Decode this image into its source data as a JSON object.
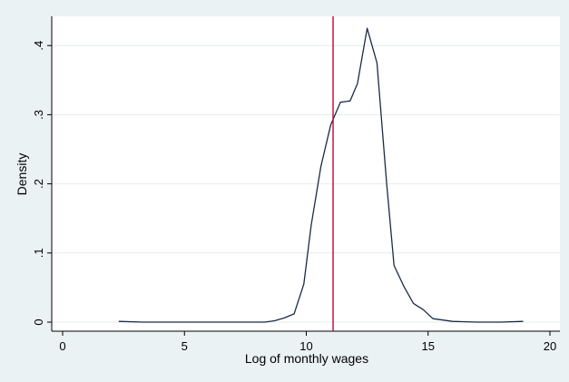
{
  "chart_data": {
    "type": "line",
    "title": "",
    "xlabel": "Log of monthly wages",
    "ylabel": "Density",
    "xlim": [
      0,
      20
    ],
    "ylim": [
      0,
      0.43
    ],
    "x_ticks": [
      0,
      5,
      10,
      15,
      20
    ],
    "x_tick_labels": [
      "0",
      "5",
      "10",
      "15",
      "20"
    ],
    "y_ticks": [
      0,
      0.1,
      0.2,
      0.3,
      0.4
    ],
    "y_tick_labels": [
      "0",
      ".1",
      ".2",
      ".3",
      ".4"
    ],
    "grid": "horizontal",
    "series": [
      {
        "x": [
          2.3,
          3.3,
          4.3,
          5.3,
          6.3,
          7.3,
          8.3,
          8.7,
          9.1,
          9.5,
          9.9,
          10.2,
          10.6,
          11.0,
          11.4,
          11.8,
          12.1,
          12.5,
          12.9,
          13.3,
          13.6,
          14.0,
          14.4,
          14.8,
          15.2,
          16.0,
          17.0,
          18.0,
          18.9
        ],
        "y": [
          0.001,
          0.0,
          0.0,
          0.0,
          0.0,
          0.0,
          0.0,
          0.002,
          0.006,
          0.012,
          0.055,
          0.14,
          0.225,
          0.285,
          0.318,
          0.32,
          0.345,
          0.425,
          0.375,
          0.2,
          0.082,
          0.052,
          0.027,
          0.018,
          0.005,
          0.001,
          0.0,
          0.0,
          0.001
        ],
        "color": "#1a2b47"
      }
    ],
    "reference_line": {
      "x": 11.1,
      "color": "#cc0033"
    }
  }
}
